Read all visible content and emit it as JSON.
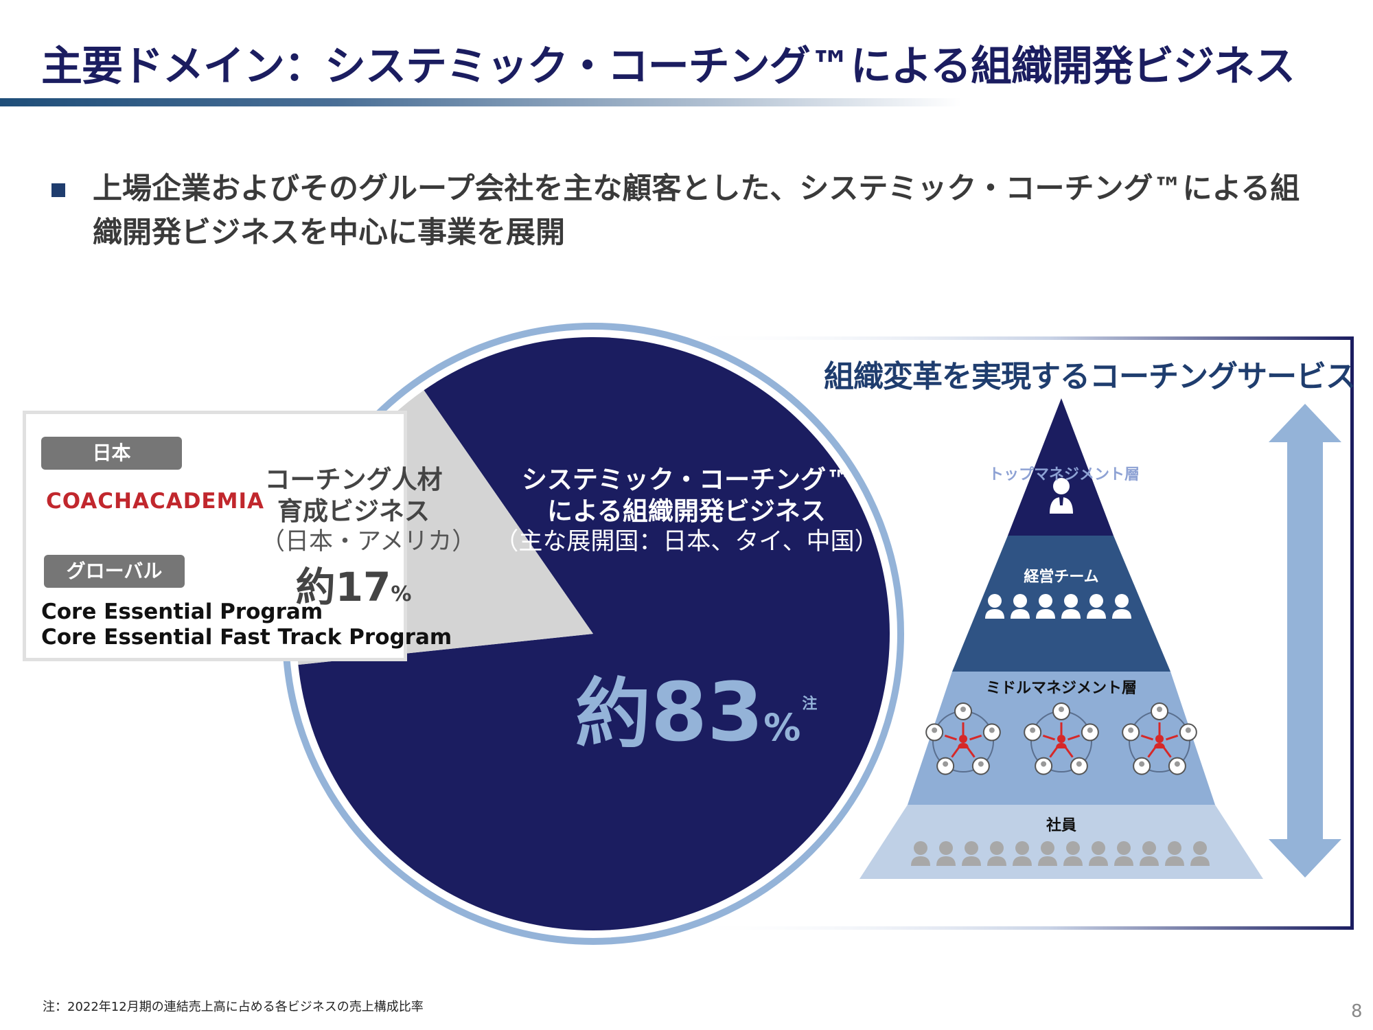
{
  "header": {
    "title": "主要ドメイン：システミック・コーチング™による組織開発ビジネス"
  },
  "bullet": {
    "line1": "上場企業およびそのグループ会社を主な顧客とした、システミック・コーチング™による組",
    "line2": "織開発ビジネスを中心に事業を展開"
  },
  "left_box": {
    "japan_tag": "日本",
    "logo_text": "COACHACADEMIA",
    "global_tag": "グローバル",
    "programs": [
      "Core Essential Program",
      "Core Essential Fast Track Program"
    ]
  },
  "chart_data": {
    "type": "pie",
    "slices": [
      {
        "name_line1": "システミック・コーチング™",
        "name_line2": "による組織開発ビジネス",
        "region": "（主な展開国：日本、タイ、中国）",
        "value": 83,
        "value_prefix": "約",
        "value_number": "83",
        "value_unit": "%",
        "note_mark": "注",
        "color": "#1b1d60"
      },
      {
        "name_line1": "コーチング人材",
        "name_line2": "育成ビジネス",
        "region": "（日本・アメリカ）",
        "value": 17,
        "value_prefix": "約",
        "value_number": "17",
        "value_unit": "%",
        "color": "#d4d4d4"
      }
    ]
  },
  "right_panel": {
    "title": "組織変革を実現するコーチングサービス",
    "levels": [
      {
        "label": "トップマネジメント層",
        "color": "#1b1d60",
        "label_color": "#8ea2d4"
      },
      {
        "label": "経営チーム",
        "color": "#2f5384",
        "label_color": "#ffffff"
      },
      {
        "label": "ミドルマネジメント層",
        "color": "#8faed6",
        "label_color": "#111111"
      },
      {
        "label": "社員",
        "color": "#bfd0e6",
        "label_color": "#111111"
      }
    ],
    "arrow_color": "#94b3d8"
  },
  "footnote": "注：2022年12月期の連結売上高に占める各ビジネスの売上構成比率",
  "page_number": "8"
}
